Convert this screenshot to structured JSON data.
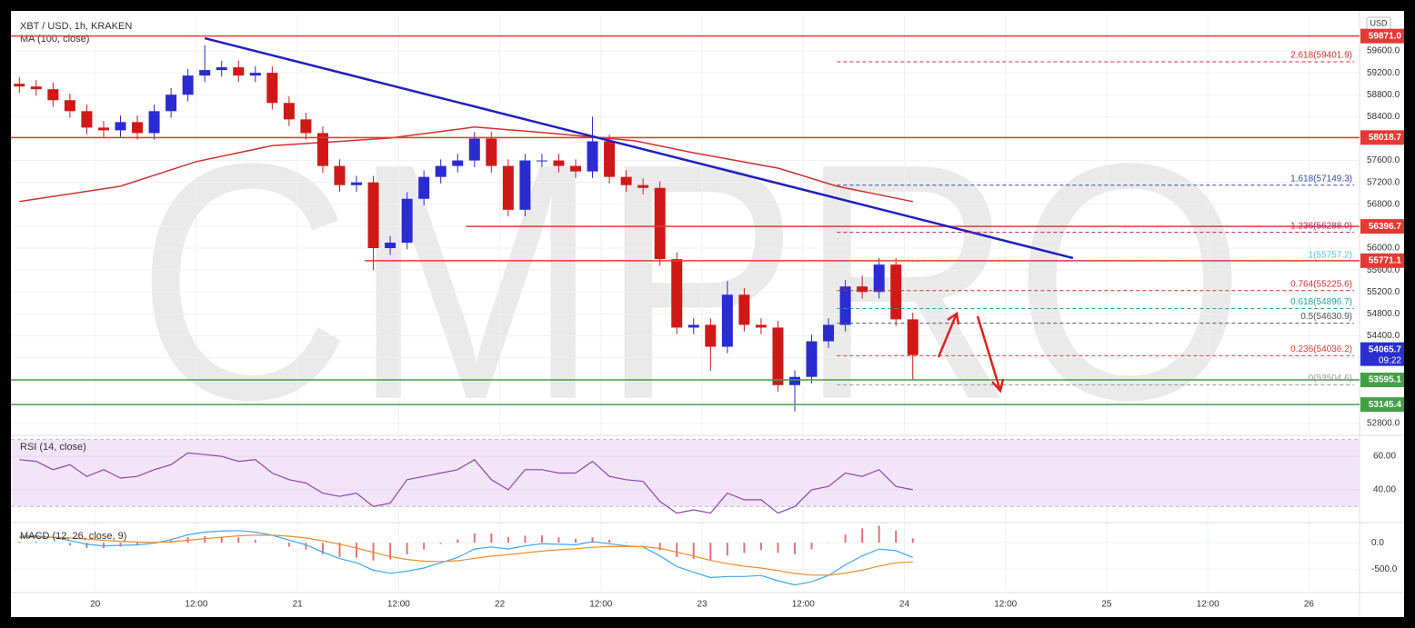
{
  "chart_data": {
    "type": "candlestick",
    "title": "XBT / USD, 1h, KRAKEN",
    "currency": "USD",
    "watermark": "CMPRO",
    "x": [
      -9,
      -7,
      -5,
      -3,
      -1,
      1,
      3,
      5,
      7,
      9,
      11,
      13,
      15,
      17,
      19,
      21,
      23,
      25,
      27,
      29,
      31,
      33,
      35,
      37,
      39,
      41,
      43,
      45,
      47,
      49,
      51,
      53,
      55,
      57,
      59,
      61,
      63,
      65,
      67,
      69,
      71,
      73,
      75,
      77,
      79,
      81,
      83,
      85,
      87,
      89,
      91,
      93,
      95,
      97
    ],
    "xlim": [
      -10,
      150
    ],
    "xticks": [
      {
        "value": 0,
        "label": "20"
      },
      {
        "value": 12,
        "label": "12:00"
      },
      {
        "value": 24,
        "label": "21"
      },
      {
        "value": 36,
        "label": "12:00"
      },
      {
        "value": 48,
        "label": "22"
      },
      {
        "value": 60,
        "label": "12:00"
      },
      {
        "value": 72,
        "label": "23"
      },
      {
        "value": 84,
        "label": "12:00"
      },
      {
        "value": 96,
        "label": "24"
      },
      {
        "value": 108,
        "label": "12:00"
      },
      {
        "value": 120,
        "label": "25"
      },
      {
        "value": 132,
        "label": "12:00"
      },
      {
        "value": 144,
        "label": "26"
      }
    ],
    "ylim": [
      52600,
      60280
    ],
    "yticks": [
      {
        "value": 52800,
        "label": "52800.0"
      },
      {
        "value": 53200,
        "label": "53200.0"
      },
      {
        "value": 53600,
        "label": "53600.0"
      },
      {
        "value": 54000,
        "label": "54000.0"
      },
      {
        "value": 54400,
        "label": "54400.0"
      },
      {
        "value": 54800,
        "label": "54800.0"
      },
      {
        "value": 55200,
        "label": "55200.0"
      },
      {
        "value": 55600,
        "label": "55600.0"
      },
      {
        "value": 56000,
        "label": "56000.0"
      },
      {
        "value": 56400,
        "label": "56400.0"
      },
      {
        "value": 56800,
        "label": "56800.0"
      },
      {
        "value": 57200,
        "label": "57200.0"
      },
      {
        "value": 57600,
        "label": "57600.0"
      },
      {
        "value": 58000,
        "label": "58000.0"
      },
      {
        "value": 58400,
        "label": "58400.0"
      },
      {
        "value": 58800,
        "label": "58800.0"
      },
      {
        "value": 59200,
        "label": "59200.0"
      },
      {
        "value": 59600,
        "label": "59600.0"
      }
    ],
    "grid": true,
    "up_color": "#2a2bd0",
    "down_color": "#d01818",
    "open": [
      59000,
      58950,
      58900,
      58700,
      58500,
      58200,
      58150,
      58300,
      58100,
      58500,
      58800,
      59150,
      59250,
      59300,
      59150,
      59200,
      58650,
      58350,
      58100,
      57500,
      57150,
      57200,
      56000,
      56100,
      56900,
      57300,
      57500,
      57600,
      58000,
      57500,
      56700,
      57600,
      57600,
      57500,
      57400,
      57950,
      57300,
      57150,
      57100,
      55800,
      54550,
      54600,
      54200,
      55150,
      54600,
      54550,
      53500,
      53650,
      54300,
      54600,
      55300,
      55200,
      55700,
      54700
    ],
    "high": [
      59120,
      59070,
      59020,
      58820,
      58620,
      58320,
      58420,
      58420,
      58620,
      58920,
      59270,
      59700,
      59420,
      59420,
      59320,
      59320,
      58770,
      58470,
      58220,
      57620,
      57320,
      57320,
      56220,
      57020,
      57420,
      57620,
      57720,
      58120,
      58120,
      57620,
      57720,
      57720,
      57720,
      57620,
      58400,
      58070,
      57420,
      57270,
      57220,
      55920,
      54720,
      54720,
      55400,
      55270,
      54720,
      54670,
      53770,
      54420,
      54720,
      55420,
      55500,
      55820,
      55820,
      54820
    ],
    "low": [
      58830,
      58780,
      58580,
      58380,
      58080,
      58030,
      58030,
      57980,
      57980,
      58380,
      58680,
      59030,
      59130,
      59030,
      59030,
      58530,
      58230,
      57980,
      57380,
      57030,
      57030,
      55600,
      55880,
      55980,
      56780,
      57180,
      57380,
      57480,
      57380,
      56580,
      56580,
      57480,
      57380,
      57280,
      57280,
      57180,
      57030,
      56980,
      55680,
      54430,
      54430,
      53760,
      54080,
      54480,
      54430,
      53380,
      53020,
      53530,
      54180,
      54480,
      55080,
      55080,
      54580,
      53600
    ],
    "close": [
      58950,
      58900,
      58700,
      58500,
      58200,
      58150,
      58300,
      58100,
      58500,
      58800,
      59150,
      59250,
      59300,
      59150,
      59200,
      58650,
      58350,
      58100,
      57500,
      57150,
      57200,
      56000,
      56100,
      56900,
      57300,
      57500,
      57600,
      58000,
      57500,
      56700,
      57600,
      57600,
      57500,
      57400,
      57950,
      57300,
      57150,
      57100,
      55800,
      54550,
      54600,
      54200,
      55150,
      54600,
      54550,
      53500,
      53650,
      54300,
      54600,
      55300,
      55200,
      55700,
      54700,
      54050
    ],
    "ma": {
      "name": "MA (100, close)",
      "color": "#d32f2f",
      "x": [
        -9,
        3,
        12,
        21,
        35,
        45,
        53,
        64,
        71,
        81,
        88,
        97
      ],
      "values": [
        56850,
        57130,
        57580,
        57870,
        58010,
        58210,
        58110,
        57960,
        57740,
        57460,
        57130,
        56850
      ]
    },
    "trend_line": {
      "color": "#1f1fbf",
      "x": [
        13,
        116
      ],
      "values": [
        59830,
        55820
      ]
    },
    "levels": {
      "values": [
        59871.0,
        58018.7,
        56396.7,
        55771.1,
        53595.1,
        53145.4
      ],
      "value_labels": [
        "59871.0",
        "58018.7",
        "56396.7",
        "55771.1",
        "53595.1",
        "53145.4"
      ],
      "colors": [
        "#e53935",
        "#e53935",
        "#e53935",
        "#e53935",
        "#43a047",
        "#43a047"
      ],
      "x_start": [
        null,
        null,
        44,
        32,
        null,
        null
      ]
    },
    "fib": {
      "x_start": 88,
      "values": [
        59401.9,
        57149.3,
        56288.0,
        55757.2,
        55225.6,
        54896.7,
        54630.9,
        54036.2,
        53504.6
      ],
      "labels": [
        "2.618(59401.9)",
        "1.618(57149.3)",
        "1.236(56288.0)",
        "1(55757.2)",
        "0.764(55225.6)",
        "0.618(54896.7)",
        "0.5(54630.9)",
        "0.236(54036.2)",
        "0(53504.6)"
      ],
      "colors": [
        "#d32f2f",
        "#3949ab",
        "#c2185b",
        "#4fc3f7",
        "#d32f2f",
        "#26a69a",
        "#555555",
        "#e53935",
        "#999999"
      ]
    },
    "last_price": {
      "value": 54065.7,
      "value_label": "54065.7",
      "countdown": "09:22",
      "color": "#2a2fd0"
    },
    "rsi": {
      "name": "RSI (14, close)",
      "color": "#8e44ad",
      "band": [
        30,
        70
      ],
      "band_color": "#f3e5f8",
      "ylim": [
        22,
        72
      ],
      "yticks": [
        {
          "value": 40,
          "label": "40.00"
        },
        {
          "value": 60,
          "label": "60.00"
        }
      ],
      "values": [
        58,
        57,
        52,
        55,
        48,
        52,
        47,
        48,
        52,
        55,
        62,
        61,
        60,
        57,
        58,
        50,
        46,
        44,
        38,
        36,
        38,
        30,
        32,
        46,
        48,
        50,
        52,
        58,
        46,
        40,
        52,
        52,
        50,
        50,
        57,
        48,
        46,
        45,
        33,
        26,
        28,
        26,
        38,
        34,
        34,
        26,
        30,
        40,
        42,
        50,
        48,
        52,
        42,
        40
      ]
    },
    "macd": {
      "name": "MACD (12, 26, close, 9)",
      "color": "#3fa9f5",
      "signal_color": "#f28c28",
      "histogram_color": "#e57373",
      "ylim": [
        -910,
        330
      ],
      "yticks": [
        {
          "value": 0,
          "label": "0.0"
        },
        {
          "value": -500,
          "label": "-500.0"
        }
      ],
      "values": [
        120,
        130,
        100,
        40,
        -30,
        -60,
        -50,
        -40,
        -10,
        60,
        150,
        200,
        220,
        230,
        200,
        140,
        50,
        -40,
        -180,
        -300,
        -380,
        -520,
        -580,
        -540,
        -480,
        -380,
        -280,
        -120,
        -80,
        -120,
        -60,
        -20,
        -30,
        -40,
        20,
        -20,
        -60,
        -80,
        -250,
        -450,
        -560,
        -660,
        -640,
        -640,
        -620,
        -720,
        -800,
        -740,
        -620,
        -420,
        -250,
        -120,
        -150,
        -280
      ],
      "signal": [
        100,
        105,
        104,
        92,
        70,
        45,
        26,
        13,
        8,
        18,
        45,
        76,
        105,
        130,
        144,
        143,
        124,
        91,
        37,
        -30,
        -100,
        -184,
        -263,
        -318,
        -350,
        -356,
        -341,
        -297,
        -254,
        -227,
        -194,
        -159,
        -133,
        -114,
        -87,
        -73,
        -71,
        -73,
        -108,
        -177,
        -253,
        -335,
        -396,
        -445,
        -480,
        -528,
        -582,
        -614,
        -615,
        -576,
        -521,
        -441,
        -383,
        -362
      ],
      "histogram": [
        20,
        25,
        -4,
        -52,
        -100,
        -105,
        -76,
        -53,
        -18,
        42,
        105,
        124,
        115,
        100,
        56,
        -3,
        -74,
        -131,
        -217,
        -270,
        -280,
        -336,
        -317,
        -222,
        -130,
        -24,
        61,
        177,
        174,
        107,
        134,
        139,
        103,
        74,
        107,
        53,
        11,
        -7,
        -142,
        -273,
        -307,
        -325,
        -244,
        -195,
        -140,
        -192,
        -218,
        -126,
        -5,
        156,
        271,
        321,
        233,
        82
      ]
    }
  }
}
